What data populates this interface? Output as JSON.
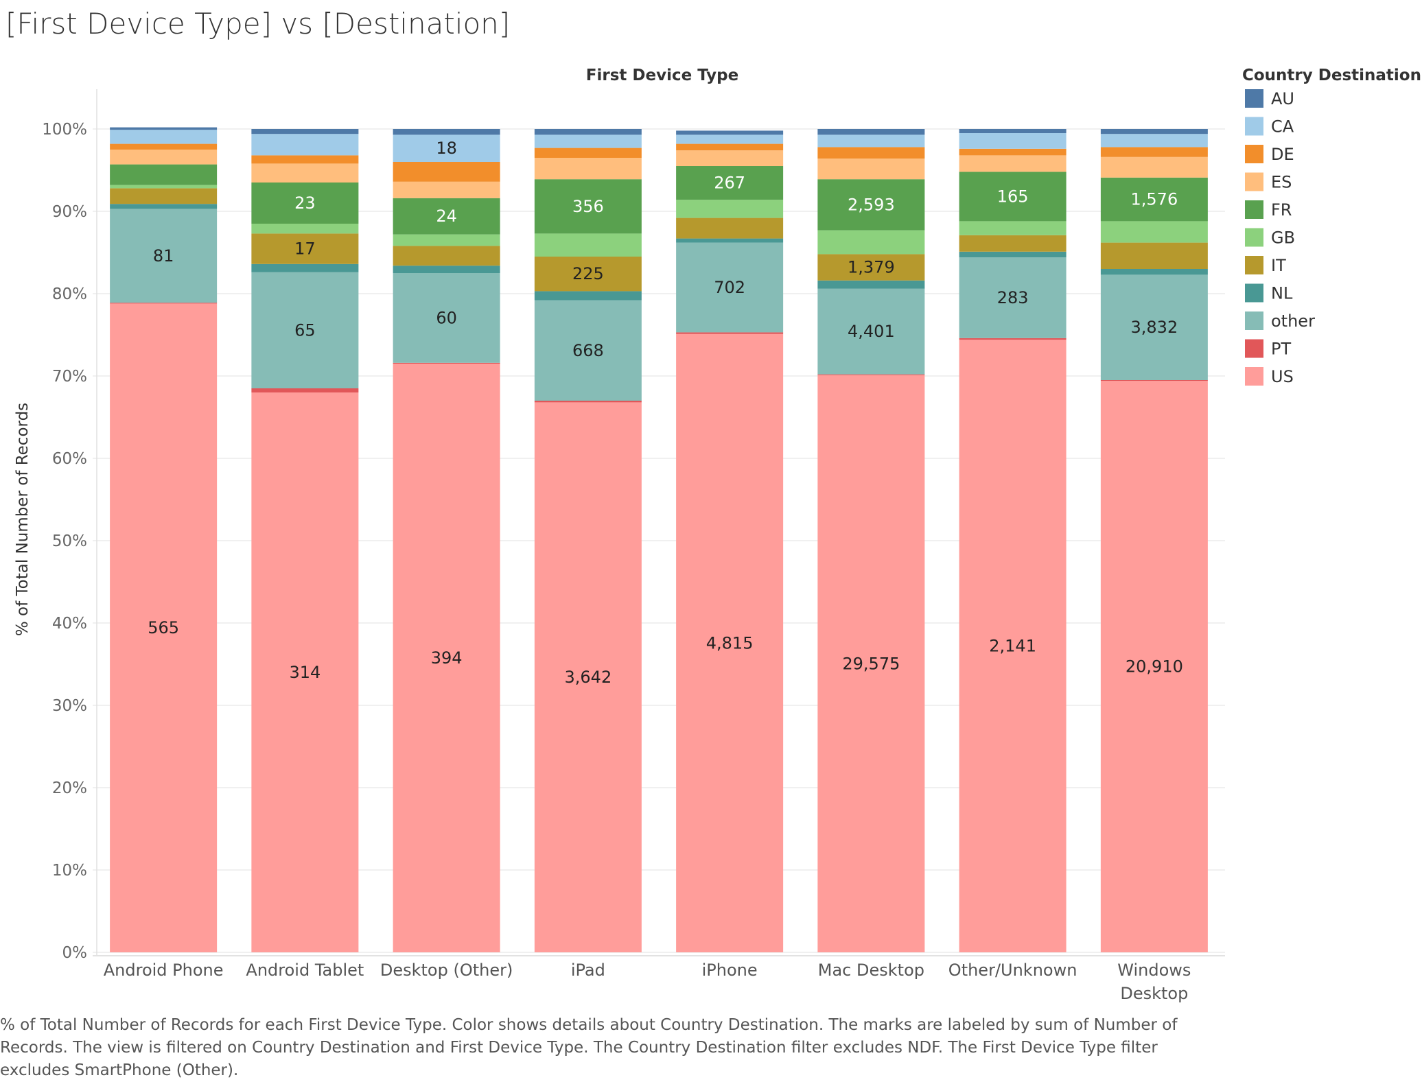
{
  "title": "[First Device Type] vs [Destination]",
  "caption": "% of Total Number of Records for each First Device Type.  Color shows details about Country Destination.  The marks are labeled by sum of Number of Records. The view is filtered on Country Destination and First Device Type. The Country Destination filter excludes NDF. The First Device Type filter excludes SmartPhone (Other).",
  "colors": {
    "AU": "#4e79a7",
    "CA": "#a0cbe8",
    "DE": "#f28e2b",
    "ES": "#ffbe7d",
    "FR": "#59a14f",
    "GB": "#8cd17d",
    "IT": "#b6992d",
    "NL": "#499894",
    "other": "#86bcb6",
    "PT": "#e15759",
    "US": "#ff9d9a"
  },
  "chart_data": {
    "type": "bar",
    "stacked": true,
    "normalized": true,
    "title": "[First Device Type] vs [Destination]",
    "column_header": "First Device Type",
    "ylabel": "% of Total Number of Records",
    "ylim": [
      0,
      1
    ],
    "yticks": [
      "0%",
      "10%",
      "20%",
      "30%",
      "40%",
      "50%",
      "60%",
      "70%",
      "80%",
      "90%",
      "100%"
    ],
    "grid": true,
    "legend": {
      "title": "Country Destination",
      "position": "right",
      "items": [
        "AU",
        "CA",
        "DE",
        "ES",
        "FR",
        "GB",
        "IT",
        "NL",
        "other",
        "PT",
        "US"
      ]
    },
    "categories": [
      {
        "name": "Android Phone",
        "lines": [
          "Android Phone"
        ]
      },
      {
        "name": "Android Tablet",
        "lines": [
          "Android Tablet"
        ]
      },
      {
        "name": "Desktop (Other)",
        "lines": [
          "Desktop (Other)"
        ]
      },
      {
        "name": "iPad",
        "lines": [
          "iPad"
        ]
      },
      {
        "name": "iPhone",
        "lines": [
          "iPhone"
        ]
      },
      {
        "name": "Mac Desktop",
        "lines": [
          "Mac Desktop"
        ]
      },
      {
        "name": "Other/Unknown",
        "lines": [
          "Other/Unknown"
        ]
      },
      {
        "name": "Windows Desktop",
        "lines": [
          "Windows",
          "Desktop"
        ]
      }
    ],
    "series": [
      {
        "name": "US",
        "values": [
          0.788,
          0.68,
          0.715,
          0.668,
          0.751,
          0.701,
          0.744,
          0.694
        ],
        "labels": [
          "565",
          "314",
          "394",
          "3,642",
          "4,815",
          "29,575",
          "2,141",
          "20,910"
        ]
      },
      {
        "name": "PT",
        "values": [
          0.001,
          0.005,
          0.001,
          0.002,
          0.002,
          0.001,
          0.002,
          0.001
        ],
        "labels": [
          "",
          "",
          "",
          "",
          "",
          "",
          "",
          ""
        ]
      },
      {
        "name": "other",
        "values": [
          0.114,
          0.141,
          0.109,
          0.122,
          0.109,
          0.104,
          0.098,
          0.128
        ],
        "labels": [
          "81",
          "65",
          "60",
          "668",
          "702",
          "4,401",
          "283",
          "3,832"
        ]
      },
      {
        "name": "NL",
        "values": [
          0.006,
          0.01,
          0.009,
          0.011,
          0.005,
          0.01,
          0.007,
          0.007
        ],
        "labels": [
          "",
          "",
          "",
          "",
          "",
          "",
          "",
          ""
        ]
      },
      {
        "name": "IT",
        "values": [
          0.019,
          0.037,
          0.024,
          0.042,
          0.025,
          0.032,
          0.02,
          0.032
        ],
        "labels": [
          "",
          "17",
          "",
          "225",
          "",
          "1,379",
          "",
          ""
        ]
      },
      {
        "name": "GB",
        "values": [
          0.004,
          0.012,
          0.014,
          0.028,
          0.022,
          0.029,
          0.017,
          0.026
        ],
        "labels": [
          "",
          "",
          "",
          "",
          "",
          "",
          "",
          ""
        ]
      },
      {
        "name": "FR",
        "values": [
          0.025,
          0.05,
          0.044,
          0.066,
          0.041,
          0.062,
          0.06,
          0.053
        ],
        "labels": [
          "",
          "23",
          "24",
          "356",
          "267",
          "2,593",
          "165",
          "1,576"
        ]
      },
      {
        "name": "ES",
        "values": [
          0.018,
          0.023,
          0.02,
          0.026,
          0.019,
          0.025,
          0.02,
          0.025
        ],
        "labels": [
          "",
          "",
          "",
          "",
          "",
          "",
          "",
          ""
        ]
      },
      {
        "name": "DE",
        "values": [
          0.007,
          0.01,
          0.024,
          0.012,
          0.008,
          0.014,
          0.008,
          0.012
        ],
        "labels": [
          "",
          "",
          "",
          "",
          "",
          "",
          "",
          ""
        ]
      },
      {
        "name": "CA",
        "values": [
          0.017,
          0.026,
          0.033,
          0.016,
          0.011,
          0.015,
          0.019,
          0.016
        ],
        "labels": [
          "",
          "",
          "18",
          "",
          "",
          "",
          "",
          ""
        ]
      },
      {
        "name": "AU",
        "values": [
          0.003,
          0.006,
          0.007,
          0.007,
          0.005,
          0.007,
          0.005,
          0.006
        ],
        "labels": [
          "",
          "",
          "",
          "",
          "",
          "",
          "",
          ""
        ]
      }
    ]
  }
}
